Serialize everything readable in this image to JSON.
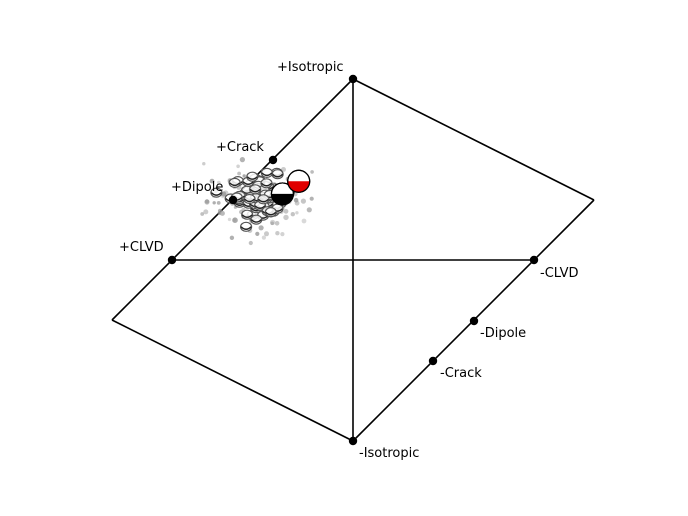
{
  "chart_data": {
    "type": "scatter",
    "title": "",
    "xlabel": "",
    "ylabel": "",
    "grid": false,
    "diagram": "source-type lune (Hudson diagram)",
    "reference_points": [
      {
        "name": "+Isotropic",
        "label": "+Isotropic"
      },
      {
        "name": "+Crack",
        "label": "+Crack"
      },
      {
        "name": "+Dipole",
        "label": "+Dipole"
      },
      {
        "name": "+CLVD",
        "label": "+CLVD"
      },
      {
        "name": "-CLVD",
        "label": "-CLVD"
      },
      {
        "name": "-Dipole",
        "label": "-Dipole"
      },
      {
        "name": "-Crack",
        "label": "-Crack"
      },
      {
        "name": "-Isotropic",
        "label": "-Isotropic"
      }
    ],
    "series": [
      {
        "kind": "bootstrap-solutions",
        "marker": "small grey dots",
        "color": "#9a9a9a",
        "center": [
          -0.52,
          0.33
        ],
        "spread": [
          0.32,
          0.2
        ],
        "count": 160
      },
      {
        "kind": "bootstrap-beachballs",
        "marker": "small beachball glyphs",
        "color": "#555555",
        "center": [
          -0.5,
          0.36
        ],
        "spread": [
          0.22,
          0.13
        ],
        "count": 70
      },
      {
        "kind": "best-fit-solutions",
        "marker": "large beachballs",
        "items": [
          {
            "x": -0.3,
            "y": 0.435,
            "color": "#e00000"
          },
          {
            "x": -0.39,
            "y": 0.365,
            "color": "#000000"
          }
        ]
      }
    ],
    "colors": {
      "frame": "#000000",
      "reference": "#000000",
      "highlight": "#e00000"
    }
  }
}
